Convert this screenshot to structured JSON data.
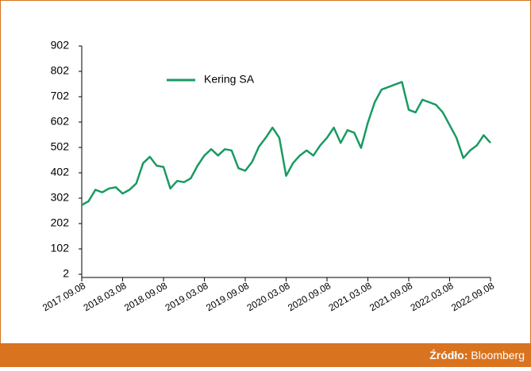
{
  "chart_data": {
    "type": "line",
    "x": [
      "2017.09.08",
      "2017.10.08",
      "2017.11.08",
      "2017.12.08",
      "2018.01.08",
      "2018.02.08",
      "2018.03.08",
      "2018.04.08",
      "2018.05.08",
      "2018.06.08",
      "2018.07.08",
      "2018.08.08",
      "2018.09.08",
      "2018.10.08",
      "2018.11.08",
      "2018.12.08",
      "2019.01.08",
      "2019.02.08",
      "2019.03.08",
      "2019.04.08",
      "2019.05.08",
      "2019.06.08",
      "2019.07.08",
      "2019.08.08",
      "2019.09.08",
      "2019.10.08",
      "2019.11.08",
      "2019.12.08",
      "2020.01.08",
      "2020.02.08",
      "2020.03.08",
      "2020.04.08",
      "2020.05.08",
      "2020.06.08",
      "2020.07.08",
      "2020.08.08",
      "2020.09.08",
      "2020.10.08",
      "2020.11.08",
      "2020.12.08",
      "2021.01.08",
      "2021.02.08",
      "2021.03.08",
      "2021.04.08",
      "2021.05.08",
      "2021.06.08",
      "2021.07.08",
      "2021.08.08",
      "2021.09.08",
      "2021.10.08",
      "2021.11.08",
      "2021.12.08",
      "2022.01.08",
      "2022.02.08",
      "2022.03.08",
      "2022.04.08",
      "2022.05.08",
      "2022.06.08",
      "2022.07.08",
      "2022.08.08",
      "2022.09.08"
    ],
    "series": [
      {
        "name": "Kering SA",
        "color": "#1a9a62",
        "values": [
          275,
          290,
          335,
          325,
          340,
          345,
          320,
          335,
          360,
          440,
          465,
          430,
          425,
          340,
          370,
          365,
          380,
          430,
          470,
          495,
          470,
          495,
          490,
          420,
          410,
          445,
          505,
          540,
          580,
          540,
          390,
          440,
          470,
          490,
          470,
          510,
          540,
          580,
          520,
          570,
          560,
          500,
          600,
          680,
          730,
          740,
          750,
          760,
          650,
          640,
          690,
          680,
          670,
          640,
          590,
          540,
          460,
          490,
          510,
          550,
          520
        ]
      }
    ],
    "xticks": [
      "2017.09.08",
      "2018.03.08",
      "2018.09.08",
      "2019.03.08",
      "2019.09.08",
      "2020.03.08",
      "2020.09.08",
      "2021.03.08",
      "2021.09.08",
      "2022.03.08",
      "2022.09.08"
    ],
    "ylim": [
      2,
      902
    ],
    "yticks": [
      2,
      102,
      202,
      302,
      402,
      502,
      602,
      702,
      802,
      902
    ],
    "legend": "top-left"
  },
  "footer": {
    "source_label": "Źródło:",
    "source": "Bloomberg"
  }
}
